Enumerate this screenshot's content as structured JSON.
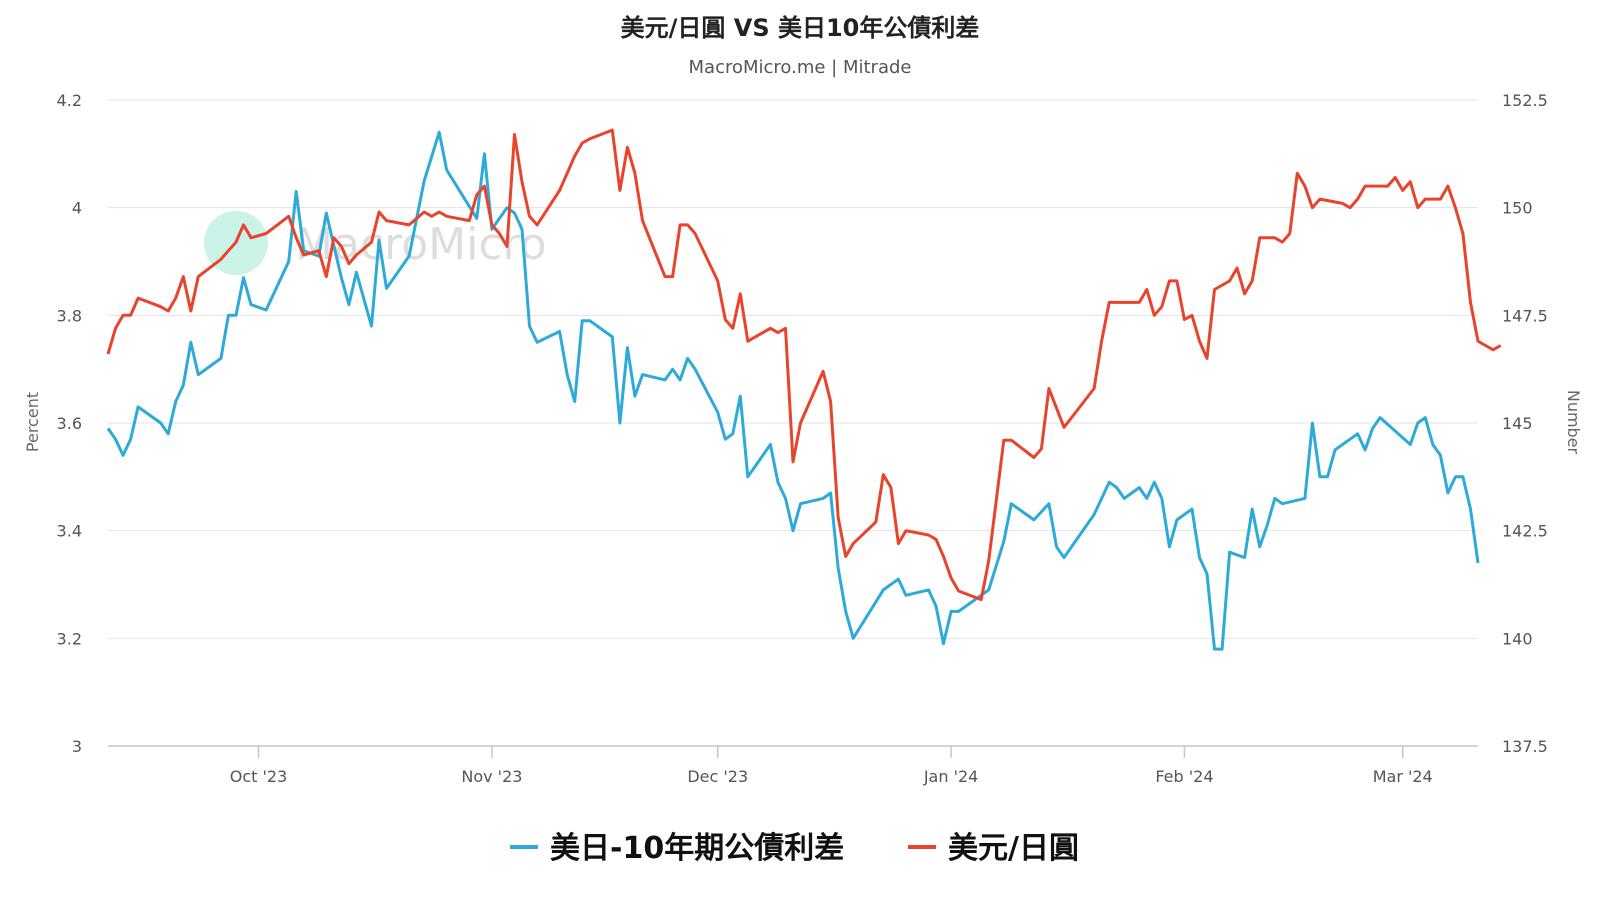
{
  "chart_data": {
    "type": "line",
    "title": "美元/日圓 VS 美日10年公債利差",
    "subtitle": "MacroMicro.me | Mitrade",
    "watermark": "MacroMicro",
    "grid": true,
    "legend_position": "bottom",
    "x_ticks": [
      "Oct '23",
      "Nov '23",
      "Dec '23",
      "Jan '24",
      "Feb '24",
      "Mar '24"
    ],
    "x_range": [
      "2023-09-11",
      "2024-03-11"
    ],
    "y_left": {
      "label": "Percent",
      "range": [
        3,
        4.2
      ],
      "ticks": [
        "3",
        "3.2",
        "3.4",
        "3.6",
        "3.8",
        "4",
        "4.2"
      ]
    },
    "y_right": {
      "label": "Number",
      "range": [
        137.5,
        152.5
      ],
      "ticks": [
        "137.5",
        "140",
        "142.5",
        "145",
        "147.5",
        "150",
        "152.5"
      ]
    },
    "series": [
      {
        "name": "美日-10年期公債利差",
        "color": "#2eaad8",
        "axis": "left",
        "points": [
          [
            "2023-09-11",
            3.59
          ],
          [
            "2023-09-12",
            3.57
          ],
          [
            "2023-09-13",
            3.54
          ],
          [
            "2023-09-14",
            3.57
          ],
          [
            "2023-09-15",
            3.63
          ],
          [
            "2023-09-18",
            3.6
          ],
          [
            "2023-09-19",
            3.58
          ],
          [
            "2023-09-20",
            3.64
          ],
          [
            "2023-09-21",
            3.67
          ],
          [
            "2023-09-22",
            3.75
          ],
          [
            "2023-09-23",
            3.69
          ],
          [
            "2023-09-26",
            3.72
          ],
          [
            "2023-09-27",
            3.8
          ],
          [
            "2023-09-28",
            3.8
          ],
          [
            "2023-09-29",
            3.87
          ],
          [
            "2023-09-30",
            3.82
          ],
          [
            "2023-10-02",
            3.81
          ],
          [
            "2023-10-05",
            3.9
          ],
          [
            "2023-10-06",
            4.03
          ],
          [
            "2023-10-07",
            3.92
          ],
          [
            "2023-10-09",
            3.91
          ],
          [
            "2023-10-10",
            3.99
          ],
          [
            "2023-10-11",
            3.93
          ],
          [
            "2023-10-12",
            3.87
          ],
          [
            "2023-10-13",
            3.82
          ],
          [
            "2023-10-14",
            3.88
          ],
          [
            "2023-10-16",
            3.78
          ],
          [
            "2023-10-17",
            3.94
          ],
          [
            "2023-10-18",
            3.85
          ],
          [
            "2023-10-21",
            3.91
          ],
          [
            "2023-10-23",
            4.05
          ],
          [
            "2023-10-25",
            4.14
          ],
          [
            "2023-10-26",
            4.07
          ],
          [
            "2023-10-30",
            3.98
          ],
          [
            "2023-10-31",
            4.1
          ],
          [
            "2023-11-01",
            3.96
          ],
          [
            "2023-11-02",
            3.98
          ],
          [
            "2023-11-03",
            4.0
          ],
          [
            "2023-11-04",
            3.99
          ],
          [
            "2023-11-05",
            3.96
          ],
          [
            "2023-11-06",
            3.78
          ],
          [
            "2023-11-07",
            3.75
          ],
          [
            "2023-11-10",
            3.77
          ],
          [
            "2023-11-11",
            3.69
          ],
          [
            "2023-11-12",
            3.64
          ],
          [
            "2023-11-13",
            3.79
          ],
          [
            "2023-11-14",
            3.79
          ],
          [
            "2023-11-17",
            3.76
          ],
          [
            "2023-11-18",
            3.6
          ],
          [
            "2023-11-19",
            3.74
          ],
          [
            "2023-11-20",
            3.65
          ],
          [
            "2023-11-21",
            3.69
          ],
          [
            "2023-11-24",
            3.68
          ],
          [
            "2023-11-25",
            3.7
          ],
          [
            "2023-11-26",
            3.68
          ],
          [
            "2023-11-27",
            3.72
          ],
          [
            "2023-11-28",
            3.7
          ],
          [
            "2023-12-01",
            3.62
          ],
          [
            "2023-12-02",
            3.57
          ],
          [
            "2023-12-03",
            3.58
          ],
          [
            "2023-12-04",
            3.65
          ],
          [
            "2023-12-05",
            3.5
          ],
          [
            "2023-12-08",
            3.56
          ],
          [
            "2023-12-09",
            3.49
          ],
          [
            "2023-12-10",
            3.46
          ],
          [
            "2023-12-11",
            3.4
          ],
          [
            "2023-12-12",
            3.45
          ],
          [
            "2023-12-15",
            3.46
          ],
          [
            "2023-12-16",
            3.47
          ],
          [
            "2023-12-17",
            3.33
          ],
          [
            "2023-12-18",
            3.25
          ],
          [
            "2023-12-19",
            3.2
          ],
          [
            "2023-12-23",
            3.29
          ],
          [
            "2023-12-25",
            3.31
          ],
          [
            "2023-12-26",
            3.28
          ],
          [
            "2023-12-29",
            3.29
          ],
          [
            "2023-12-30",
            3.26
          ],
          [
            "2023-12-31",
            3.19
          ],
          [
            "2024-01-01",
            3.25
          ],
          [
            "2024-01-02",
            3.25
          ],
          [
            "2024-01-03",
            3.26
          ],
          [
            "2024-01-06",
            3.29
          ],
          [
            "2024-01-08",
            3.38
          ],
          [
            "2024-01-09",
            3.45
          ],
          [
            "2024-01-12",
            3.42
          ],
          [
            "2024-01-14",
            3.45
          ],
          [
            "2024-01-15",
            3.37
          ],
          [
            "2024-01-16",
            3.35
          ],
          [
            "2024-01-20",
            3.43
          ],
          [
            "2024-01-22",
            3.49
          ],
          [
            "2024-01-23",
            3.48
          ],
          [
            "2024-01-24",
            3.46
          ],
          [
            "2024-01-26",
            3.48
          ],
          [
            "2024-01-27",
            3.46
          ],
          [
            "2024-01-28",
            3.49
          ],
          [
            "2024-01-29",
            3.46
          ],
          [
            "2024-01-30",
            3.37
          ],
          [
            "2024-01-31",
            3.42
          ],
          [
            "2024-02-02",
            3.44
          ],
          [
            "2024-02-03",
            3.35
          ],
          [
            "2024-02-04",
            3.32
          ],
          [
            "2024-02-05",
            3.18
          ],
          [
            "2024-02-06",
            3.18
          ],
          [
            "2024-02-07",
            3.36
          ],
          [
            "2024-02-09",
            3.35
          ],
          [
            "2024-02-10",
            3.44
          ],
          [
            "2024-02-11",
            3.37
          ],
          [
            "2024-02-12",
            3.41
          ],
          [
            "2024-02-13",
            3.46
          ],
          [
            "2024-02-14",
            3.45
          ],
          [
            "2024-02-17",
            3.46
          ],
          [
            "2024-02-18",
            3.6
          ],
          [
            "2024-02-19",
            3.5
          ],
          [
            "2024-02-20",
            3.5
          ],
          [
            "2024-02-21",
            3.55
          ],
          [
            "2024-02-24",
            3.58
          ],
          [
            "2024-02-25",
            3.55
          ],
          [
            "2024-02-26",
            3.59
          ],
          [
            "2024-02-27",
            3.61
          ],
          [
            "2024-03-02",
            3.56
          ],
          [
            "2024-03-03",
            3.6
          ],
          [
            "2024-03-04",
            3.61
          ],
          [
            "2024-03-05",
            3.56
          ],
          [
            "2024-03-06",
            3.54
          ],
          [
            "2024-03-07",
            3.47
          ],
          [
            "2024-03-08",
            3.5
          ],
          [
            "2024-03-09",
            3.5
          ],
          [
            "2024-03-10",
            3.44
          ],
          [
            "2024-03-11",
            3.34
          ]
        ]
      },
      {
        "name": "美元/日圓",
        "color": "#e8442c",
        "axis": "right",
        "points": [
          [
            "2023-09-11",
            146.6
          ],
          [
            "2023-09-12",
            147.2
          ],
          [
            "2023-09-13",
            147.5
          ],
          [
            "2023-09-14",
            147.5
          ],
          [
            "2023-09-15",
            147.9
          ],
          [
            "2023-09-18",
            147.7
          ],
          [
            "2023-09-19",
            147.6
          ],
          [
            "2023-09-20",
            147.9
          ],
          [
            "2023-09-21",
            148.4
          ],
          [
            "2023-09-22",
            147.6
          ],
          [
            "2023-09-23",
            148.4
          ],
          [
            "2023-09-26",
            148.8
          ],
          [
            "2023-09-27",
            149.0
          ],
          [
            "2023-09-28",
            149.2
          ],
          [
            "2023-09-29",
            149.6
          ],
          [
            "2023-09-30",
            149.3
          ],
          [
            "2023-10-02",
            149.4
          ],
          [
            "2023-10-05",
            149.8
          ],
          [
            "2023-10-06",
            149.3
          ],
          [
            "2023-10-07",
            148.9
          ],
          [
            "2023-10-09",
            149.0
          ],
          [
            "2023-10-10",
            148.4
          ],
          [
            "2023-10-11",
            149.3
          ],
          [
            "2023-10-12",
            149.1
          ],
          [
            "2023-10-13",
            148.7
          ],
          [
            "2023-10-14",
            148.9
          ],
          [
            "2023-10-16",
            149.2
          ],
          [
            "2023-10-17",
            149.9
          ],
          [
            "2023-10-18",
            149.7
          ],
          [
            "2023-10-21",
            149.6
          ],
          [
            "2023-10-23",
            149.9
          ],
          [
            "2023-10-24",
            149.8
          ],
          [
            "2023-10-25",
            149.9
          ],
          [
            "2023-10-26",
            149.8
          ],
          [
            "2023-10-29",
            149.7
          ],
          [
            "2023-10-30",
            150.3
          ],
          [
            "2023-10-31",
            150.5
          ],
          [
            "2023-11-01",
            149.6
          ],
          [
            "2023-11-02",
            149.4
          ],
          [
            "2023-11-03",
            149.1
          ],
          [
            "2023-11-04",
            151.7
          ],
          [
            "2023-11-05",
            150.6
          ],
          [
            "2023-11-06",
            149.8
          ],
          [
            "2023-11-07",
            149.6
          ],
          [
            "2023-11-10",
            150.4
          ],
          [
            "2023-11-11",
            150.8
          ],
          [
            "2023-11-12",
            151.2
          ],
          [
            "2023-11-13",
            151.5
          ],
          [
            "2023-11-14",
            151.6
          ],
          [
            "2023-11-17",
            151.8
          ],
          [
            "2023-11-18",
            150.4
          ],
          [
            "2023-11-19",
            151.4
          ],
          [
            "2023-11-20",
            150.8
          ],
          [
            "2023-11-21",
            149.7
          ],
          [
            "2023-11-24",
            148.4
          ],
          [
            "2023-11-25",
            148.4
          ],
          [
            "2023-11-26",
            149.6
          ],
          [
            "2023-11-27",
            149.6
          ],
          [
            "2023-11-28",
            149.4
          ],
          [
            "2023-12-01",
            148.3
          ],
          [
            "2023-12-02",
            147.4
          ],
          [
            "2023-12-03",
            147.2
          ],
          [
            "2023-12-04",
            148.0
          ],
          [
            "2023-12-05",
            146.9
          ],
          [
            "2023-12-08",
            147.2
          ],
          [
            "2023-12-09",
            147.1
          ],
          [
            "2023-12-10",
            147.2
          ],
          [
            "2023-12-11",
            144.1
          ],
          [
            "2023-12-12",
            145.0
          ],
          [
            "2023-12-15",
            146.2
          ],
          [
            "2023-12-16",
            145.5
          ],
          [
            "2023-12-17",
            142.8
          ],
          [
            "2023-12-18",
            141.9
          ],
          [
            "2023-12-19",
            142.2
          ],
          [
            "2023-12-22",
            142.7
          ],
          [
            "2023-12-23",
            143.8
          ],
          [
            "2023-12-24",
            143.5
          ],
          [
            "2023-12-25",
            142.2
          ],
          [
            "2023-12-26",
            142.5
          ],
          [
            "2023-12-29",
            142.4
          ],
          [
            "2023-12-30",
            142.3
          ],
          [
            "2023-12-31",
            141.9
          ],
          [
            "2024-01-01",
            141.4
          ],
          [
            "2024-01-02",
            141.1
          ],
          [
            "2024-01-05",
            140.9
          ],
          [
            "2024-01-06",
            141.8
          ],
          [
            "2024-01-08",
            144.6
          ],
          [
            "2024-01-09",
            144.6
          ],
          [
            "2024-01-12",
            144.2
          ],
          [
            "2024-01-13",
            144.4
          ],
          [
            "2024-01-14",
            145.8
          ],
          [
            "2024-01-16",
            144.9
          ],
          [
            "2024-01-20",
            145.8
          ],
          [
            "2024-01-21",
            146.9
          ],
          [
            "2024-01-22",
            147.8
          ],
          [
            "2024-01-26",
            147.8
          ],
          [
            "2024-01-27",
            148.1
          ],
          [
            "2024-01-28",
            147.5
          ],
          [
            "2024-01-29",
            147.7
          ],
          [
            "2024-01-30",
            148.3
          ],
          [
            "2024-01-31",
            148.3
          ],
          [
            "2024-02-01",
            147.4
          ],
          [
            "2024-02-02",
            147.5
          ],
          [
            "2024-02-03",
            146.9
          ],
          [
            "2024-02-04",
            146.5
          ],
          [
            "2024-02-05",
            148.1
          ],
          [
            "2024-02-07",
            148.3
          ],
          [
            "2024-02-08",
            148.6
          ],
          [
            "2024-02-09",
            148.0
          ],
          [
            "2024-02-10",
            148.3
          ],
          [
            "2024-02-11",
            149.3
          ],
          [
            "2024-02-13",
            149.3
          ],
          [
            "2024-02-14",
            149.2
          ],
          [
            "2024-02-15",
            149.4
          ],
          [
            "2024-02-16",
            150.8
          ],
          [
            "2024-02-17",
            150.5
          ],
          [
            "2024-02-18",
            150.0
          ],
          [
            "2024-02-19",
            150.2
          ],
          [
            "2024-02-22",
            150.1
          ],
          [
            "2024-02-23",
            150.0
          ],
          [
            "2024-02-24",
            150.2
          ],
          [
            "2024-02-25",
            150.5
          ],
          [
            "2024-02-28",
            150.5
          ],
          [
            "2024-02-29",
            150.7
          ],
          [
            "2024-03-01",
            150.4
          ],
          [
            "2024-03-02",
            150.6
          ],
          [
            "2024-03-03",
            150.0
          ],
          [
            "2024-03-04",
            150.2
          ],
          [
            "2024-03-06",
            150.2
          ],
          [
            "2024-03-07",
            150.5
          ],
          [
            "2024-03-08",
            150.0
          ],
          [
            "2024-03-09",
            149.4
          ],
          [
            "2024-03-10",
            147.8
          ],
          [
            "2024-03-11",
            146.9
          ],
          [
            "2024-03-12",
            146.8
          ],
          [
            "2024-03-13",
            146.7
          ],
          [
            "2024-03-14",
            146.8
          ]
        ]
      }
    ]
  }
}
